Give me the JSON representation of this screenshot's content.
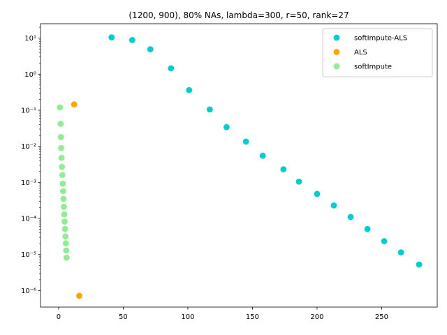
{
  "chart_data": {
    "type": "scatter",
    "title": "(1200, 900), 80% NAs, lambda=300, r=50, rank=27",
    "xlabel": "",
    "ylabel": "",
    "xlim": [
      -14,
      293
    ],
    "ylim": [
      3.5e-07,
      25
    ],
    "yscale": "log",
    "grid": false,
    "legend_position": "top-right",
    "x_ticks": [
      {
        "value": 0,
        "label": "0"
      },
      {
        "value": 50,
        "label": "50"
      },
      {
        "value": 100,
        "label": "100"
      },
      {
        "value": 150,
        "label": "150"
      },
      {
        "value": 200,
        "label": "200"
      },
      {
        "value": 250,
        "label": "250"
      }
    ],
    "y_ticks": [
      {
        "exp": 1,
        "label": "10¹"
      },
      {
        "exp": 0,
        "label": "10⁰"
      },
      {
        "exp": -1,
        "label": "10⁻¹"
      },
      {
        "exp": -2,
        "label": "10⁻²"
      },
      {
        "exp": -3,
        "label": "10⁻³"
      },
      {
        "exp": -4,
        "label": "10⁻⁴"
      },
      {
        "exp": -5,
        "label": "10⁻⁵"
      },
      {
        "exp": -6,
        "label": "10⁻⁶"
      }
    ],
    "series": [
      {
        "name": "softImpute-ALS",
        "color": "#00ced1",
        "points": [
          [
            41,
            10.5
          ],
          [
            57,
            8.8
          ],
          [
            71,
            4.9
          ],
          [
            87,
            1.45
          ],
          [
            101,
            0.36
          ],
          [
            117,
            0.105
          ],
          [
            130,
            0.034
          ],
          [
            145,
            0.0135
          ],
          [
            158,
            0.0055
          ],
          [
            174,
            0.0023
          ],
          [
            186,
            0.00105
          ],
          [
            200,
            0.00048
          ],
          [
            213,
            0.00023
          ],
          [
            226,
            0.00011
          ],
          [
            239,
            5.1e-05
          ],
          [
            252,
            2.35e-05
          ],
          [
            265,
            1.15e-05
          ],
          [
            279,
            5.3e-06
          ]
        ]
      },
      {
        "name": "ALS",
        "color": "#ffa500",
        "points": [
          [
            12,
            0.145
          ],
          [
            16,
            7.2e-07
          ]
        ]
      },
      {
        "name": "softImpute",
        "color": "#90ee90",
        "points": [
          [
            1,
            0.12
          ],
          [
            1.6,
            0.042
          ],
          [
            1.8,
            0.018
          ],
          [
            2,
            0.009
          ],
          [
            2.3,
            0.0048
          ],
          [
            2.6,
            0.0027
          ],
          [
            2.9,
            0.0016
          ],
          [
            3.2,
            0.00092
          ],
          [
            3.5,
            0.00057
          ],
          [
            3.8,
            0.00035
          ],
          [
            4.1,
            0.00021
          ],
          [
            4.4,
            0.00013
          ],
          [
            4.7,
            8.2e-05
          ],
          [
            5,
            5.1e-05
          ],
          [
            5.3,
            3.2e-05
          ],
          [
            5.6,
            2.05e-05
          ],
          [
            5.9,
            1.3e-05
          ],
          [
            6.2,
            8.2e-06
          ]
        ]
      }
    ]
  }
}
